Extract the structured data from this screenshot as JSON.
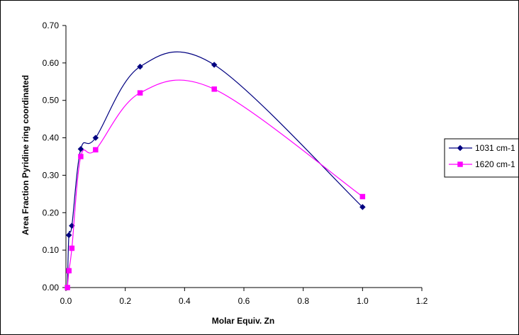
{
  "chart_data": {
    "type": "line",
    "title": "",
    "xlabel": "Molar Equiv. Zn",
    "ylabel": "Area Fraction Pyridine ring coordinated",
    "xlim": [
      0,
      1.2
    ],
    "ylim": [
      0,
      0.7
    ],
    "x_ticks": [
      "0.0",
      "0.2",
      "0.4",
      "0.6",
      "0.8",
      "1.0",
      "1.2"
    ],
    "y_ticks": [
      "0.00",
      "0.10",
      "0.20",
      "0.30",
      "0.40",
      "0.50",
      "0.60",
      "0.70"
    ],
    "grid": false,
    "legend_position": "right",
    "series": [
      {
        "name": "1031 cm-1",
        "color": "#000080",
        "marker": "diamond",
        "x": [
          0.005,
          0.01,
          0.02,
          0.05,
          0.1,
          0.25,
          0.5,
          1.0
        ],
        "y": [
          0.0,
          0.14,
          0.165,
          0.37,
          0.4,
          0.59,
          0.595,
          0.215
        ]
      },
      {
        "name": "1620 cm-1",
        "color": "#FF00FF",
        "marker": "square",
        "x": [
          0.005,
          0.01,
          0.02,
          0.05,
          0.1,
          0.25,
          0.5,
          1.0
        ],
        "y": [
          0.0,
          0.045,
          0.105,
          0.35,
          0.368,
          0.52,
          0.53,
          0.243
        ]
      }
    ]
  }
}
